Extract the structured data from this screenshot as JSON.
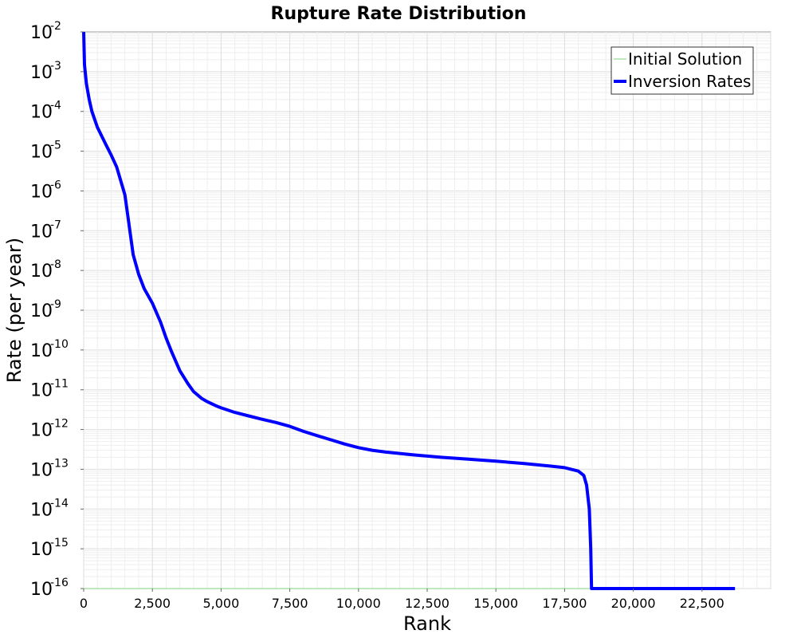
{
  "chart_data": {
    "type": "line",
    "title": "Rupture Rate Distribution",
    "xlabel": "Rank",
    "ylabel": "Rate (per year)",
    "xlim": [
      0,
      25000
    ],
    "ylim": [
      1e-16,
      0.01
    ],
    "y_scale": "log",
    "grid": true,
    "legend_position": "top-right",
    "x_ticks": [
      {
        "value": 0,
        "label": "0"
      },
      {
        "value": 2500,
        "label": "2,500"
      },
      {
        "value": 5000,
        "label": "5,000"
      },
      {
        "value": 7500,
        "label": "7,500"
      },
      {
        "value": 10000,
        "label": "10,000"
      },
      {
        "value": 12500,
        "label": "12,500"
      },
      {
        "value": 15000,
        "label": "15,000"
      },
      {
        "value": 17500,
        "label": "17,500"
      },
      {
        "value": 20000,
        "label": "20,000"
      },
      {
        "value": 22500,
        "label": "22,500"
      }
    ],
    "y_ticks": [
      {
        "value": 0.01,
        "base": "10",
        "exp": "-2"
      },
      {
        "value": 0.001,
        "base": "10",
        "exp": "-3"
      },
      {
        "value": 0.0001,
        "base": "10",
        "exp": "-4"
      },
      {
        "value": 1e-05,
        "base": "10",
        "exp": "-5"
      },
      {
        "value": 1e-06,
        "base": "10",
        "exp": "-6"
      },
      {
        "value": 1e-07,
        "base": "10",
        "exp": "-7"
      },
      {
        "value": 1e-08,
        "base": "10",
        "exp": "-8"
      },
      {
        "value": 1e-09,
        "base": "10",
        "exp": "-9"
      },
      {
        "value": 1e-10,
        "base": "10",
        "exp": "-10"
      },
      {
        "value": 1e-11,
        "base": "10",
        "exp": "-11"
      },
      {
        "value": 1e-12,
        "base": "10",
        "exp": "-12"
      },
      {
        "value": 1e-13,
        "base": "10",
        "exp": "-13"
      },
      {
        "value": 1e-14,
        "base": "10",
        "exp": "-14"
      },
      {
        "value": 1e-15,
        "base": "10",
        "exp": "-15"
      },
      {
        "value": 1e-16,
        "base": "10",
        "exp": "-16"
      }
    ],
    "series": [
      {
        "name": "Initial Solution",
        "color": "#7ed37e",
        "style": "thin",
        "x": [
          0,
          23700
        ],
        "y": [
          1e-16,
          1e-16
        ]
      },
      {
        "name": "Inversion Rates",
        "color": "#0000ff",
        "style": "thick",
        "x": [
          0,
          30,
          100,
          200,
          300,
          500,
          800,
          1000,
          1200,
          1500,
          1600,
          1700,
          1800,
          2000,
          2200,
          2500,
          2800,
          3000,
          3200,
          3500,
          3800,
          4000,
          4300,
          4500,
          4800,
          5000,
          5500,
          6000,
          6500,
          7000,
          7500,
          8000,
          8500,
          9000,
          9500,
          10000,
          10500,
          11000,
          12000,
          13000,
          14000,
          15000,
          16000,
          17000,
          17500,
          18000,
          18200,
          18300,
          18400,
          18450,
          18480,
          18500,
          18520,
          19000,
          20000,
          21000,
          22000,
          23000,
          23700
        ],
        "y": [
          0.01,
          0.0015,
          0.0005,
          0.0002,
          0.0001,
          4e-05,
          1.5e-05,
          8e-06,
          4e-06,
          8e-07,
          2.5e-07,
          8e-08,
          2.5e-08,
          8e-09,
          3.5e-09,
          1.5e-09,
          5e-10,
          2e-10,
          9e-11,
          3e-11,
          1.4e-11,
          9e-12,
          6e-12,
          5e-12,
          4e-12,
          3.5e-12,
          2.7e-12,
          2.2e-12,
          1.8e-12,
          1.5e-12,
          1.2e-12,
          9e-13,
          7e-13,
          5.5e-13,
          4.3e-13,
          3.5e-13,
          3e-13,
          2.7e-13,
          2.3e-13,
          2e-13,
          1.8e-13,
          1.6e-13,
          1.4e-13,
          1.2e-13,
          1.1e-13,
          9e-14,
          7e-14,
          4e-14,
          1e-14,
          1e-15,
          1e-16,
          1e-16,
          1e-16,
          1e-16,
          1e-16,
          1e-16,
          1e-16,
          1e-16,
          1e-16
        ]
      }
    ]
  }
}
